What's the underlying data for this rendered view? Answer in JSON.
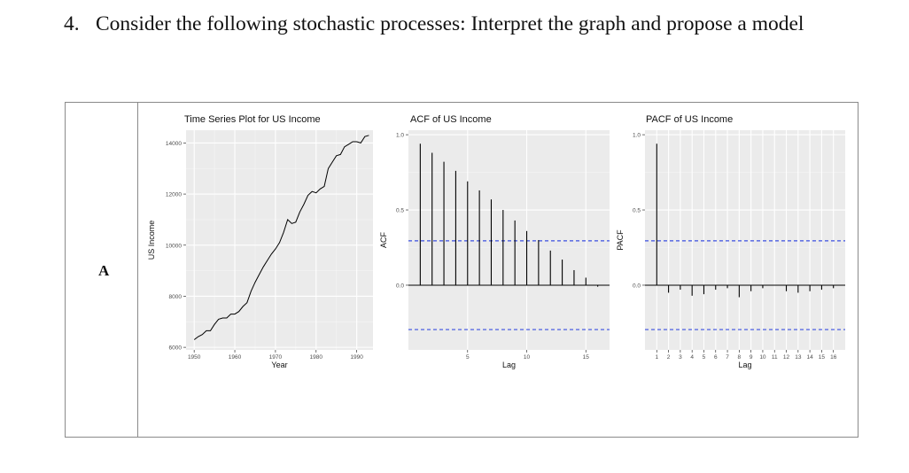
{
  "question": {
    "number": "4.",
    "text": "Consider the following stochastic processes: Interpret the graph and propose a model"
  },
  "table": {
    "row_label": "A"
  },
  "chart_data": [
    {
      "type": "line",
      "title": "Time Series Plot for US Income",
      "xlabel": "Year",
      "ylabel": "US Income",
      "xlim": [
        1948,
        1994
      ],
      "ylim": [
        5900,
        14500
      ],
      "xticks": [
        1950,
        1960,
        1970,
        1980,
        1990
      ],
      "yticks": [
        6000,
        8000,
        10000,
        12000,
        14000
      ],
      "grid": true,
      "x": [
        1950,
        1951,
        1952,
        1953,
        1954,
        1955,
        1956,
        1957,
        1958,
        1959,
        1960,
        1961,
        1962,
        1963,
        1964,
        1965,
        1966,
        1967,
        1968,
        1969,
        1970,
        1971,
        1972,
        1973,
        1974,
        1975,
        1976,
        1977,
        1978,
        1979,
        1980,
        1981,
        1982,
        1983,
        1984,
        1985,
        1986,
        1987,
        1988,
        1989,
        1990,
        1991,
        1992,
        1993
      ],
      "y": [
        6300,
        6420,
        6500,
        6650,
        6650,
        6900,
        7100,
        7150,
        7150,
        7300,
        7300,
        7400,
        7600,
        7750,
        8200,
        8550,
        8850,
        9150,
        9400,
        9650,
        9850,
        10100,
        10500,
        11000,
        10850,
        10900,
        11300,
        11600,
        11950,
        12100,
        12050,
        12200,
        12300,
        13000,
        13250,
        13500,
        13550,
        13850,
        13950,
        14050,
        14050,
        14000,
        14250,
        14300
      ]
    },
    {
      "type": "bar",
      "title": "ACF of US Income",
      "xlabel": "Lag",
      "ylabel": "ACF",
      "xlim": [
        0,
        17
      ],
      "ylim": [
        -0.43,
        1.03
      ],
      "xticks": [
        5,
        10,
        15
      ],
      "yticks": [
        0.0,
        0.5,
        1.0
      ],
      "grid": true,
      "lags": [
        1,
        2,
        3,
        4,
        5,
        6,
        7,
        8,
        9,
        10,
        11,
        12,
        13,
        14,
        15,
        16
      ],
      "values": [
        0.94,
        0.88,
        0.82,
        0.76,
        0.69,
        0.63,
        0.57,
        0.5,
        0.43,
        0.36,
        0.3,
        0.23,
        0.17,
        0.1,
        0.05,
        -0.01
      ],
      "confidence_bound": 0.295
    },
    {
      "type": "bar",
      "title": "PACF of US Income",
      "xlabel": "Lag",
      "ylabel": "PACF",
      "xlim": [
        0,
        17
      ],
      "ylim": [
        -0.43,
        1.03
      ],
      "xticks": [
        1,
        2,
        3,
        4,
        5,
        6,
        7,
        8,
        9,
        10,
        11,
        12,
        13,
        14,
        15,
        16
      ],
      "yticks": [
        0.0,
        0.5,
        1.0
      ],
      "grid": true,
      "lags": [
        1,
        2,
        3,
        4,
        5,
        6,
        7,
        8,
        9,
        10,
        11,
        12,
        13,
        14,
        15,
        16
      ],
      "values": [
        0.94,
        -0.05,
        -0.03,
        -0.07,
        -0.06,
        -0.03,
        -0.02,
        -0.08,
        -0.04,
        -0.02,
        0.0,
        -0.04,
        -0.05,
        -0.04,
        -0.03,
        -0.02
      ],
      "confidence_bound": 0.295
    }
  ]
}
